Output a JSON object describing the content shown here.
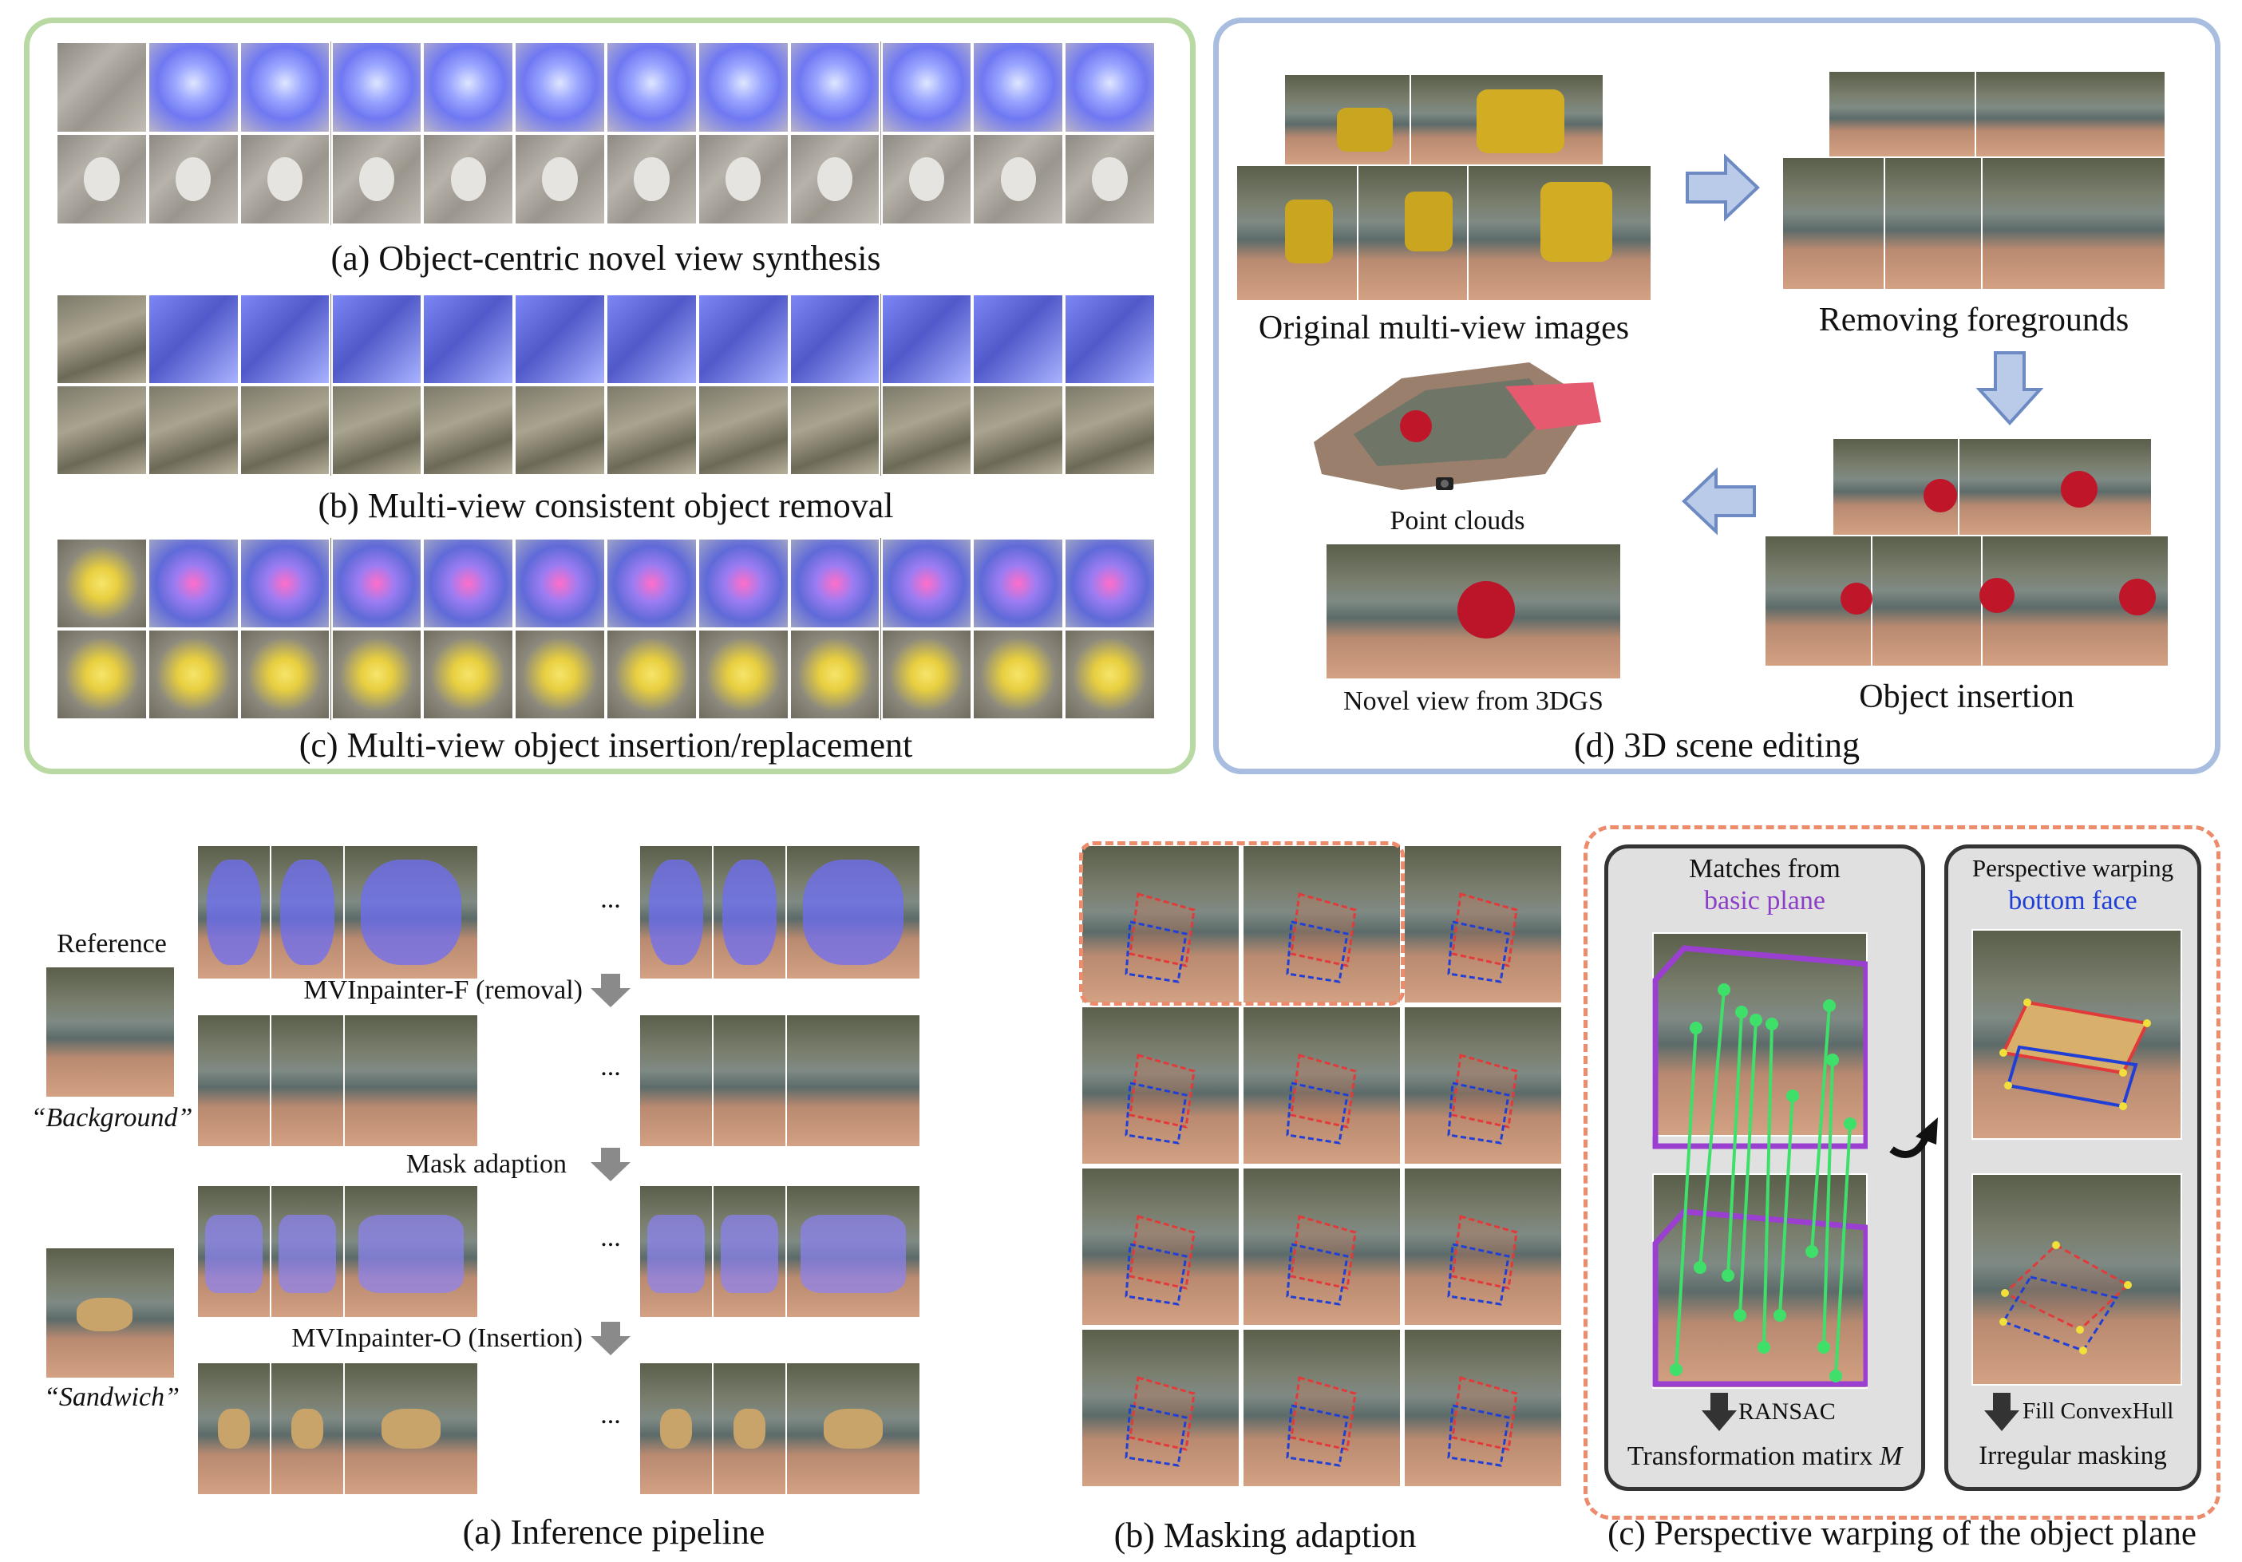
{
  "top": {
    "captions": {
      "a": "(a) Object-centric novel view synthesis",
      "b": "(b) Multi-view consistent object removal",
      "c": "(c) Multi-view object insertion/replacement",
      "d": "(d) 3D scene editing"
    },
    "scene_editing": {
      "original": "Original multi-view images",
      "removing": "Removing foregrounds",
      "insertion": "Object insertion",
      "point_clouds": "Point clouds",
      "novel_view": "Novel view from 3DGS"
    }
  },
  "bottom": {
    "pipeline": {
      "reference": "Reference",
      "background_quote": "“Background”",
      "sandwich_quote": "“Sandwich”",
      "step1": "MVInpainter-F (removal)",
      "step2": "Mask adaption",
      "step3": "MVInpainter-O (Insertion)",
      "ellipsis": "...",
      "caption": "(a) Inference pipeline"
    },
    "masking": {
      "caption": "(b) Masking adaption"
    },
    "perspective": {
      "left_title_1": "Matches from",
      "left_title_2": "basic plane",
      "left_step": "RANSAC",
      "left_result": "Transformation matirx ",
      "left_result_var": "M",
      "right_title_1": "Perspective warping",
      "right_title_2": "bottom face",
      "right_step": "Fill ConvexHull",
      "right_result": "Irregular masking",
      "caption": "(c) Perspective warping of the object plane"
    }
  },
  "colors": {
    "green_border": "#b9d9a3",
    "blue_border": "#a8bde0",
    "orange_dash": "#ec8c6c",
    "purple": "#8c3ec7",
    "blue": "#1f3fd6",
    "match_green": "#3fe06a",
    "arrow_fill": "#b9cbe8",
    "arrow_stroke": "#6d8bc2"
  },
  "icons": [
    "right-arrow-icon",
    "down-arrow-icon",
    "left-arrow-icon",
    "curved-arrow-icon",
    "camera-icon"
  ]
}
